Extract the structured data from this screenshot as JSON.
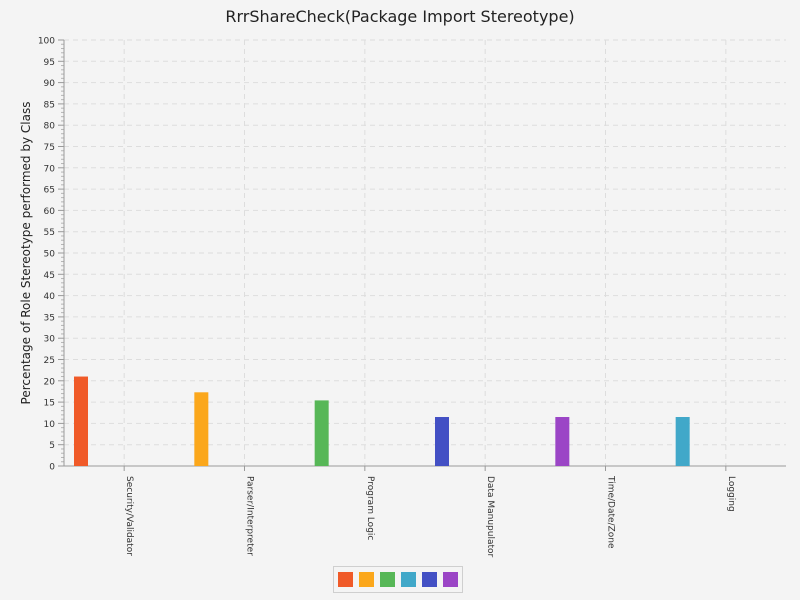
{
  "chart_data": {
    "type": "bar",
    "title": "RrrShareCheck(Package Import Stereotype)",
    "xlabel": "",
    "ylabel": "Percentage of Role Stereotype performed by Class",
    "categories": [
      "Security/Validator",
      "Parser/Interpreter",
      "Program Logic",
      "Data Manupulator",
      "Time/Date/Zone",
      "Logging"
    ],
    "values": [
      21,
      17.3,
      15.4,
      11.5,
      11.5,
      11.5
    ],
    "colors": [
      "#f05a28",
      "#fba71b",
      "#57b757",
      "#4350c4",
      "#9b45c6",
      "#41a8c9"
    ],
    "ylim": [
      0,
      100
    ],
    "ytick_step": 5,
    "grid": true,
    "legend": {
      "position": "bottom-center",
      "swatch_colors": [
        "#f05a28",
        "#fba71b",
        "#57b757",
        "#41a8c9",
        "#4350c4",
        "#9b45c6"
      ]
    }
  }
}
